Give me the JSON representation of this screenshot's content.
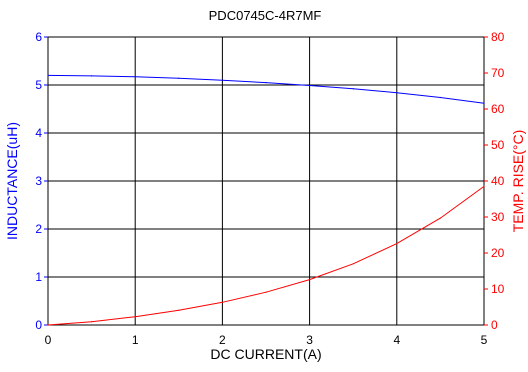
{
  "chart_data": {
    "type": "line",
    "title": "PDC0745C-4R7MF",
    "xlabel": "DC CURRENT(A)",
    "ylabel_left": "INDUCTANCE(uH)",
    "ylabel_right": "TEMP. RISE(°C)",
    "xlim": [
      0,
      5
    ],
    "ylim_left": [
      0,
      6
    ],
    "ylim_right": [
      0,
      80
    ],
    "x_ticks": [
      "0",
      "1",
      "2",
      "3",
      "4",
      "5"
    ],
    "y_left_ticks": [
      "0",
      "1",
      "2",
      "3",
      "4",
      "5",
      "6"
    ],
    "y_right_ticks": [
      "0",
      "10",
      "20",
      "30",
      "40",
      "50",
      "60",
      "70",
      "80"
    ],
    "grid": true,
    "left_axis_color": "#0000ff",
    "right_axis_color": "#ff0000",
    "series": [
      {
        "axis": "left",
        "color": "#0000ff",
        "x": [
          0,
          0.5,
          1,
          1.5,
          2,
          2.5,
          3,
          3.5,
          4,
          4.5,
          5
        ],
        "values": [
          5.2,
          5.19,
          5.17,
          5.14,
          5.1,
          5.05,
          4.99,
          4.92,
          4.84,
          4.74,
          4.62
        ]
      },
      {
        "axis": "right",
        "color": "#ff0000",
        "x": [
          0,
          0.5,
          1,
          1.5,
          2,
          2.5,
          3,
          3.5,
          4,
          4.5,
          5
        ],
        "values": [
          0,
          0.9,
          2.3,
          4.1,
          6.3,
          9.1,
          12.6,
          17.0,
          22.6,
          29.7,
          38.5
        ]
      }
    ]
  }
}
